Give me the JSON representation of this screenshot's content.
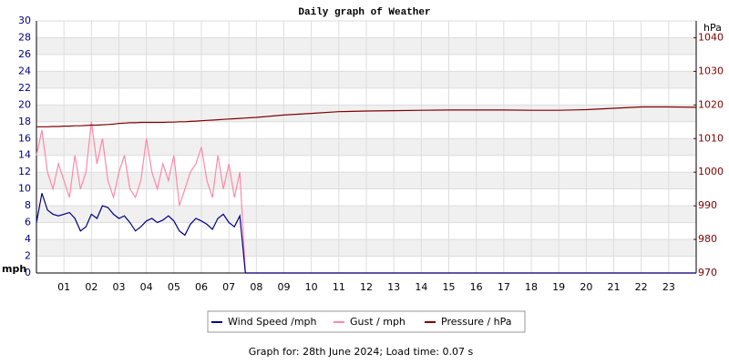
{
  "chart_data": {
    "type": "line",
    "title": "Daily graph of Weather",
    "ylabel": "mph",
    "y2label": "hPa",
    "footer": "Graph for: 28th June 2024; Load time: 0.07 s",
    "x": [
      0,
      0.2,
      0.4,
      0.6,
      0.8,
      1,
      1.2,
      1.4,
      1.6,
      1.8,
      2,
      2.2,
      2.4,
      2.6,
      2.8,
      3,
      3.2,
      3.4,
      3.6,
      3.8,
      4,
      4.2,
      4.4,
      4.6,
      4.8,
      5,
      5.2,
      5.4,
      5.6,
      5.8,
      6,
      6.2,
      6.4,
      6.6,
      6.8,
      7,
      7.2,
      7.4,
      7.6,
      8,
      9,
      10,
      11,
      12,
      13,
      14,
      15,
      16,
      17,
      18,
      19,
      20,
      21,
      22,
      23,
      24
    ],
    "xlim": [
      0,
      24
    ],
    "xticks": [
      {
        "value": 1,
        "label": "01"
      },
      {
        "value": 2,
        "label": "02"
      },
      {
        "value": 3,
        "label": "03"
      },
      {
        "value": 4,
        "label": "04"
      },
      {
        "value": 5,
        "label": "05"
      },
      {
        "value": 6,
        "label": "06"
      },
      {
        "value": 7,
        "label": "07"
      },
      {
        "value": 8,
        "label": "08"
      },
      {
        "value": 9,
        "label": "09"
      },
      10,
      11,
      12,
      13,
      14,
      15,
      16,
      17,
      18,
      19,
      20,
      21,
      22,
      23
    ],
    "ylim": [
      0,
      30
    ],
    "yticks": [
      0,
      2,
      4,
      6,
      8,
      10,
      12,
      14,
      16,
      18,
      20,
      22,
      24,
      26,
      28,
      30
    ],
    "y2lim": [
      970,
      1045
    ],
    "y2ticks": [
      970,
      980,
      990,
      1000,
      1010,
      1020,
      1030,
      1040
    ],
    "grid": true,
    "series": [
      {
        "name": "Gust / mph",
        "color": "#ff88aa",
        "values": [
          14,
          17,
          12,
          10,
          13,
          11,
          9,
          14,
          10,
          12,
          18,
          13,
          16,
          11,
          9,
          12,
          14,
          10,
          9,
          11,
          16,
          12,
          10,
          13,
          11,
          14,
          8,
          10,
          12,
          13,
          15,
          11,
          9,
          14,
          10,
          13,
          9,
          12,
          0,
          0,
          0,
          0,
          0,
          0,
          0,
          0,
          0,
          0,
          0,
          0,
          0,
          0,
          0,
          0,
          0,
          0
        ]
      },
      {
        "name": "Wind Speed /mph",
        "color": "#000080",
        "values": [
          6,
          9.5,
          7.5,
          7,
          6.8,
          7,
          7.2,
          6.5,
          5,
          5.5,
          7,
          6.5,
          8,
          7.8,
          7,
          6.5,
          6.8,
          6,
          5,
          5.5,
          6.2,
          6.5,
          6,
          6.3,
          6.8,
          6.2,
          5,
          4.5,
          5.8,
          6.5,
          6.2,
          5.8,
          5.2,
          6.5,
          7,
          6,
          5.5,
          6.8,
          0,
          0,
          0,
          0,
          0,
          0,
          0,
          0,
          0,
          0,
          0,
          0,
          0,
          0,
          0,
          0,
          0,
          0
        ]
      },
      {
        "name": "Pressure / hPa",
        "color": "#800000",
        "axis": "y2",
        "values": [
          1013.5,
          1013.5,
          1013.5,
          1013.6,
          1013.6,
          1013.7,
          1013.7,
          1013.8,
          1013.8,
          1013.9,
          1014,
          1014,
          1014.1,
          1014.2,
          1014.3,
          1014.5,
          1014.6,
          1014.7,
          1014.7,
          1014.8,
          1014.8,
          1014.8,
          1014.8,
          1014.8,
          1014.9,
          1014.9,
          1015,
          1015,
          1015.1,
          1015.2,
          1015.3,
          1015.4,
          1015.5,
          1015.6,
          1015.7,
          1015.8,
          1015.9,
          1016,
          1016.1,
          1016.3,
          1017,
          1017.5,
          1018,
          1018.2,
          1018.3,
          1018.4,
          1018.5,
          1018.5,
          1018.5,
          1018.4,
          1018.4,
          1018.6,
          1019,
          1019.4,
          1019.4,
          1019.3
        ]
      }
    ]
  }
}
